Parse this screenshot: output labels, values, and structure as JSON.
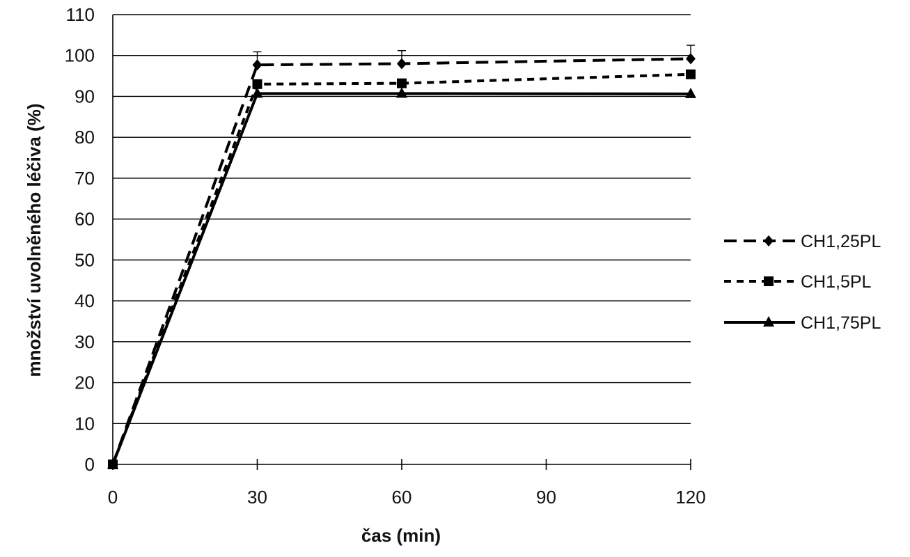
{
  "chart_data": {
    "type": "line",
    "title": "",
    "xlabel": "čas (min)",
    "ylabel": "množství uvolněného léčiva (%)",
    "x": [
      0,
      30,
      60,
      120
    ],
    "xlim": [
      0,
      120
    ],
    "ylim": [
      0,
      110
    ],
    "x_ticks": [
      0,
      30,
      60,
      90,
      120
    ],
    "y_ticks": [
      0,
      10,
      20,
      30,
      40,
      50,
      60,
      70,
      80,
      90,
      100,
      110
    ],
    "grid": "horizontal",
    "legend_position": "right",
    "series": [
      {
        "name": "CH1,25PL",
        "values": [
          0,
          97.7,
          98.0,
          99.2
        ],
        "error": [
          0,
          3.2,
          3.2,
          3.3
        ],
        "line": "dashed",
        "marker": "diamond"
      },
      {
        "name": "CH1,5PL",
        "values": [
          0,
          93.0,
          93.2,
          95.4
        ],
        "error": [
          0,
          0,
          0,
          0
        ],
        "line": "short-dashed",
        "marker": "square"
      },
      {
        "name": "CH1,75PL",
        "values": [
          0,
          90.7,
          90.7,
          90.6
        ],
        "error": [
          0,
          0,
          0,
          0
        ],
        "line": "solid",
        "marker": "triangle"
      }
    ]
  }
}
